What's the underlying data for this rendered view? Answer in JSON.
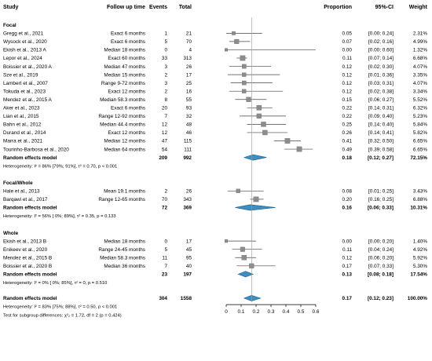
{
  "headers": {
    "study": "Study",
    "follow_up": "Follow up time",
    "events": "Events",
    "total": "Total",
    "proportion": "Proportion",
    "ci": "95%-CI",
    "weight": "Weight"
  },
  "colors": {
    "square": "#8c8c8c",
    "diamond": "#3b8fc2",
    "diamond_stroke": "#1f5f86",
    "line": "#444444"
  },
  "chart_data": {
    "type": "forest",
    "xlim": [
      0,
      0.6
    ],
    "ticks": [
      "0",
      "0.1",
      "0.2",
      "0.3",
      "0.4",
      "0.5",
      "0.6"
    ],
    "tick_values": [
      0,
      0.1,
      0.2,
      0.3,
      0.4,
      0.5,
      0.6
    ],
    "reference_line": 0.17,
    "groups": [
      {
        "name": "Focal",
        "studies": [
          {
            "study": "Gregg et al., 2021",
            "follow": "Exact 6 months",
            "events": "1",
            "total": "21",
            "prop": 0.05,
            "lo": 0.0,
            "hi": 0.24,
            "prop_s": "0.05",
            "ci_s": "[0.00; 0.24]",
            "weight": "2.31%",
            "w": 2.31
          },
          {
            "study": "Wysock et al., 2020",
            "follow": "Exact 6 months",
            "events": "5",
            "total": "70",
            "prop": 0.07,
            "lo": 0.02,
            "hi": 0.16,
            "prop_s": "0.07",
            "ci_s": "[0.02; 0.16]",
            "weight": "4.99%",
            "w": 4.99
          },
          {
            "study": "Ekish et al., 2013 A",
            "follow": "Median 18 months",
            "events": "0",
            "total": "4",
            "prop": 0.0,
            "lo": 0.0,
            "hi": 0.6,
            "prop_s": "0.00",
            "ci_s": "[0.00; 0.60]",
            "weight": "1.32%",
            "w": 1.32
          },
          {
            "study": "Lepor et al., 2024",
            "follow": "Exact 60 months",
            "events": "33",
            "total": "313",
            "prop": 0.11,
            "lo": 0.07,
            "hi": 0.14,
            "prop_s": "0.11",
            "ci_s": "[0.07; 0.14]",
            "weight": "6.68%",
            "w": 6.68
          },
          {
            "study": "Boissier et al., 2020 A",
            "follow": "Median 47 months",
            "events": "3",
            "total": "26",
            "prop": 0.12,
            "lo": 0.02,
            "hi": 0.3,
            "prop_s": "0.12",
            "ci_s": "[0.02; 0.30]",
            "weight": "4.07%",
            "w": 4.07
          },
          {
            "study": "Sze et al., 2019",
            "follow": "Median 15 months",
            "events": "2",
            "total": "17",
            "prop": 0.12,
            "lo": 0.01,
            "hi": 0.36,
            "prop_s": "0.12",
            "ci_s": "[0.01; 0.36]",
            "weight": "3.35%",
            "w": 3.35
          },
          {
            "study": "Lambert et al., 2007",
            "follow": "Range 9-72 months",
            "events": "3",
            "total": "25",
            "prop": 0.12,
            "lo": 0.03,
            "hi": 0.31,
            "prop_s": "0.12",
            "ci_s": "[0.03; 0.31]",
            "weight": "4.07%",
            "w": 4.07
          },
          {
            "study": "Tokuda et al., 2023",
            "follow": "Exact 12 months",
            "events": "2",
            "total": "16",
            "prop": 0.12,
            "lo": 0.02,
            "hi": 0.38,
            "prop_s": "0.12",
            "ci_s": "[0.02; 0.38]",
            "weight": "3.34%",
            "w": 3.34
          },
          {
            "study": "Mendez et al., 2015 A",
            "follow": "Median 58.3 months",
            "events": "8",
            "total": "55",
            "prop": 0.15,
            "lo": 0.06,
            "hi": 0.27,
            "prop_s": "0.15",
            "ci_s": "[0.06; 0.27]",
            "weight": "5.52%",
            "w": 5.52
          },
          {
            "study": "Aker et al., 2023",
            "follow": "Exact 6 months",
            "events": "20",
            "total": "93",
            "prop": 0.22,
            "lo": 0.14,
            "hi": 0.31,
            "prop_s": "0.22",
            "ci_s": "[0.14; 0.31]",
            "weight": "6.32%",
            "w": 6.32
          },
          {
            "study": "Lian et al., 2015",
            "follow": "Range 12-92 months",
            "events": "7",
            "total": "32",
            "prop": 0.22,
            "lo": 0.09,
            "hi": 0.4,
            "prop_s": "0.22",
            "ci_s": "[0.09; 0.40]",
            "weight": "5.23%",
            "w": 5.23
          },
          {
            "study": "Bahn et al., 2012",
            "follow": "Median 44.4 months",
            "events": "12",
            "total": "48",
            "prop": 0.25,
            "lo": 0.14,
            "hi": 0.4,
            "prop_s": "0.25",
            "ci_s": "[0.14; 0.40]",
            "weight": "5.84%",
            "w": 5.84
          },
          {
            "study": "Durand et al., 2014",
            "follow": "Exact 12 months",
            "events": "12",
            "total": "46",
            "prop": 0.26,
            "lo": 0.14,
            "hi": 0.41,
            "prop_s": "0.26",
            "ci_s": "[0.14; 0.41]",
            "weight": "5.82%",
            "w": 5.82
          },
          {
            "study": "Marra et al., 2021",
            "follow": "Median 12 months",
            "events": "47",
            "total": "115",
            "prop": 0.41,
            "lo": 0.32,
            "hi": 0.5,
            "prop_s": "0.41",
            "ci_s": "[0.32; 0.50]",
            "weight": "6.65%",
            "w": 6.65
          },
          {
            "study": "Tourinho-Barbosa et al., 2020",
            "follow": "Median 64 months",
            "events": "54",
            "total": "111",
            "prop": 0.49,
            "lo": 0.39,
            "hi": 0.58,
            "prop_s": "0.49",
            "ci_s": "[0.39; 0.58]",
            "weight": "6.65%",
            "w": 6.65
          }
        ],
        "summary": {
          "label": "Random effects model",
          "events": "209",
          "total": "992",
          "prop": 0.18,
          "lo": 0.12,
          "hi": 0.27,
          "prop_s": "0.18",
          "ci_s": "[0.12; 0.27]",
          "weight": "72.15%"
        },
        "heterogeneity": "Heterogeneity: I² = 86% [79%; 91%], τ² = 0.70, p < 0.001"
      },
      {
        "name": "Focal/Whole",
        "studies": [
          {
            "study": "Hale et al., 2013",
            "follow": "Mean 19.1 months",
            "events": "2",
            "total": "26",
            "prop": 0.08,
            "lo": 0.01,
            "hi": 0.25,
            "prop_s": "0.08",
            "ci_s": "[0.01; 0.25]",
            "weight": "3.43%",
            "w": 3.43
          },
          {
            "study": "Barqawi et al., 2017",
            "follow": "Range 12-65 months",
            "events": "70",
            "total": "343",
            "prop": 0.2,
            "lo": 0.16,
            "hi": 0.25,
            "prop_s": "0.20",
            "ci_s": "[0.16; 0.25]",
            "weight": "6.88%",
            "w": 6.88
          }
        ],
        "summary": {
          "label": "Random effects model",
          "events": "72",
          "total": "369",
          "prop": 0.16,
          "lo": 0.06,
          "hi": 0.33,
          "prop_s": "0.16",
          "ci_s": "[0.06; 0.33]",
          "weight": "10.31%"
        },
        "heterogeneity": "Heterogeneity: I² = 56% [ 0%; 89%], τ² = 0.35, p = 0.133"
      },
      {
        "name": "Whole",
        "studies": [
          {
            "study": "Ekish et al., 2013 B",
            "follow": "Median 18 months",
            "events": "0",
            "total": "17",
            "prop": 0.0,
            "lo": 0.0,
            "hi": 0.2,
            "prop_s": "0.00",
            "ci_s": "[0.00; 0.20]",
            "weight": "1.40%",
            "w": 1.4
          },
          {
            "study": "Enikeev et al., 2020",
            "follow": "Range 24-45 months",
            "events": "5",
            "total": "45",
            "prop": 0.11,
            "lo": 0.04,
            "hi": 0.24,
            "prop_s": "0.11",
            "ci_s": "[0.04; 0.24]",
            "weight": "4.92%",
            "w": 4.92
          },
          {
            "study": "Mendez et al., 2015 B",
            "follow": "Median 58.3 months",
            "events": "11",
            "total": "95",
            "prop": 0.12,
            "lo": 0.06,
            "hi": 0.2,
            "prop_s": "0.12",
            "ci_s": "[0.06; 0.20]",
            "weight": "5.92%",
            "w": 5.92
          },
          {
            "study": "Boissier et al., 2020 B",
            "follow": "Median 36 months",
            "events": "7",
            "total": "40",
            "prop": 0.17,
            "lo": 0.07,
            "hi": 0.33,
            "prop_s": "0.17",
            "ci_s": "[0.07; 0.33]",
            "weight": "5.30%",
            "w": 5.3
          }
        ],
        "summary": {
          "label": "Random effects model",
          "events": "23",
          "total": "197",
          "prop": 0.13,
          "lo": 0.08,
          "hi": 0.18,
          "prop_s": "0.13",
          "ci_s": "[0.08; 0.18]",
          "weight": "17.54%"
        },
        "heterogeneity": "Heterogeneity: I² = 0% [ 0%; 85%], τ² = 0, p = 0.510"
      }
    ],
    "overall": {
      "label": "Random effects model",
      "events": "304",
      "total": "1558",
      "prop": 0.17,
      "lo": 0.12,
      "hi": 0.23,
      "prop_s": "0.17",
      "ci_s": "[0.12; 0.23]",
      "weight": "100.00%"
    },
    "overall_heterogeneity": "Heterogeneity: I² = 83% [75%; 88%], τ² = 0.50, p < 0.001",
    "subgroup_test": "Test for subgroup differences: χ²₂ = 1.72, df = 2 (p = 0.424)"
  }
}
